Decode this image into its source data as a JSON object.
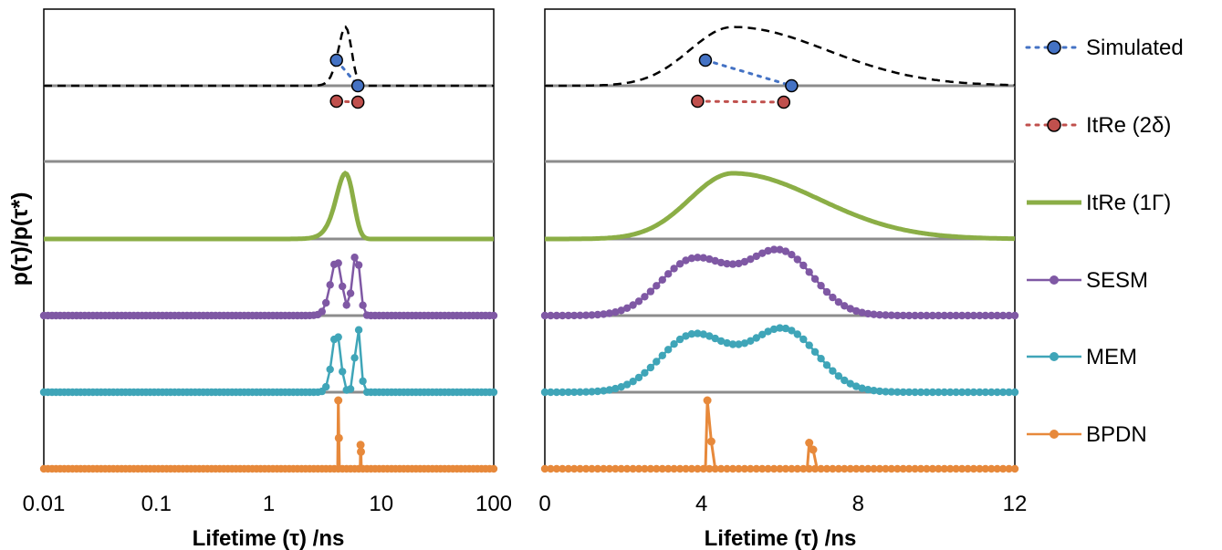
{
  "figure": {
    "ylabel": "p(τ)/p(τ*)",
    "legend": [
      {
        "name": "Simulated",
        "color": "#4472C4",
        "style": "dotted-marker"
      },
      {
        "name": "ItRe (2δ)",
        "color": "#C0504D",
        "style": "dotted-marker"
      },
      {
        "name": "ItRe (1Γ)",
        "color": "#8BAE46",
        "style": "thick-line"
      },
      {
        "name": "SESM",
        "color": "#7F58A4",
        "style": "line-marker"
      },
      {
        "name": "MEM",
        "color": "#3FA5B8",
        "style": "line-marker"
      },
      {
        "name": "BPDN",
        "color": "#E7893B",
        "style": "line-marker"
      }
    ]
  },
  "chart_data": [
    {
      "type": "line",
      "panel": "left",
      "xscale": "log",
      "xlim": [
        0.01,
        100
      ],
      "xticks": [
        "0.01",
        "0.1",
        "1",
        "10",
        "100"
      ],
      "xlabel": "Lifetime (τ) /ns",
      "series": [
        {
          "name": "Simulated",
          "points": [
            [
              4.0,
              1.0
            ],
            [
              6.2,
              0.6
            ]
          ],
          "dist": {
            "kind": "gauss",
            "center": 4.8,
            "sigma": 0.65,
            "baseline_from": 0.01,
            "baseline_to": 100
          }
        },
        {
          "name": "ItRe (2δ)",
          "points": [
            [
              4.0,
              0.6
            ],
            [
              6.2,
              0.5
            ]
          ]
        },
        {
          "name": "ItRe (1Γ)",
          "dist": {
            "kind": "gauss",
            "center": 4.8,
            "sigma": 0.85
          }
        },
        {
          "name": "SESM",
          "peaks": [
            {
              "x": 4.0,
              "h": 0.78
            },
            {
              "x": 6.0,
              "h": 0.9
            }
          ],
          "x_min": 0.01,
          "x_max": 100
        },
        {
          "name": "MEM",
          "peaks": [
            {
              "x": 4.0,
              "h": 0.85
            },
            {
              "x": 6.2,
              "h": 0.92
            }
          ],
          "x_min": 0.01,
          "x_max": 100
        },
        {
          "name": "BPDN",
          "points": [
            [
              4.1,
              0.0
            ],
            [
              4.15,
              1.0
            ],
            [
              4.2,
              0.45
            ],
            [
              4.25,
              0.0
            ],
            [
              6.5,
              0.0
            ],
            [
              6.55,
              0.35
            ],
            [
              6.6,
              0.25
            ],
            [
              6.65,
              0.0
            ]
          ],
          "x_min": 0.01,
          "x_max": 100
        }
      ]
    },
    {
      "type": "line",
      "panel": "right",
      "xscale": "linear",
      "xlim": [
        0,
        12
      ],
      "xticks": [
        "0",
        "4",
        "8",
        "12"
      ],
      "xlabel": "Lifetime (τ) /ns",
      "series": [
        {
          "name": "Simulated",
          "points": [
            [
              4.1,
              1.0
            ],
            [
              6.3,
              0.6
            ]
          ],
          "dist": {
            "kind": "skew",
            "center": 4.8,
            "rise": 1.1,
            "fall": 2.4
          }
        },
        {
          "name": "ItRe (2δ)",
          "points": [
            [
              3.9,
              0.6
            ],
            [
              6.1,
              0.5
            ]
          ]
        },
        {
          "name": "ItRe (1Γ)",
          "dist": {
            "kind": "skew",
            "center": 4.8,
            "rise": 1.1,
            "fall": 2.2
          }
        },
        {
          "name": "SESM",
          "peaks": [
            {
              "x": 3.8,
              "h": 0.78
            },
            {
              "x": 6.0,
              "h": 0.9
            }
          ],
          "x_min": 0,
          "x_max": 12
        },
        {
          "name": "MEM",
          "peaks": [
            {
              "x": 3.8,
              "h": 0.8
            },
            {
              "x": 6.1,
              "h": 0.88
            }
          ],
          "x_min": 0,
          "x_max": 12
        },
        {
          "name": "BPDN",
          "points": [
            [
              4.1,
              0.0
            ],
            [
              4.15,
              1.0
            ],
            [
              4.25,
              0.4
            ],
            [
              4.35,
              0.0
            ],
            [
              6.7,
              0.0
            ],
            [
              6.75,
              0.38
            ],
            [
              6.85,
              0.28
            ],
            [
              6.95,
              0.0
            ]
          ],
          "x_min": 0,
          "x_max": 12
        }
      ]
    }
  ]
}
